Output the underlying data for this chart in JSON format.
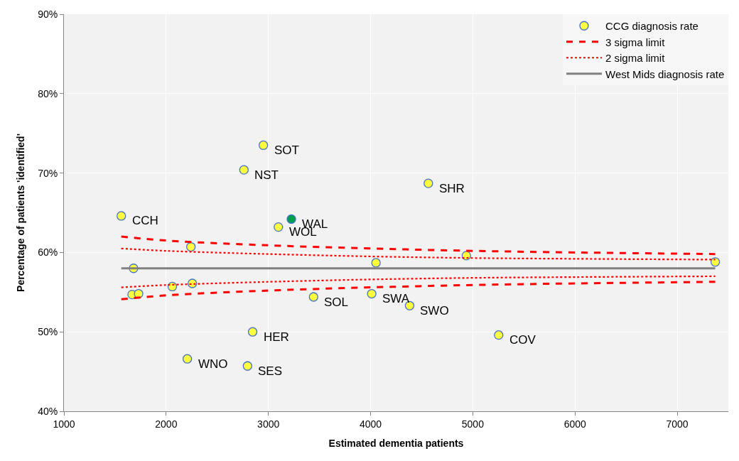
{
  "chart_data": {
    "type": "scatter",
    "xlabel": "Estimated dementia patients",
    "ylabel": "Percentage of patients 'identified'",
    "xlim": [
      1000,
      7500
    ],
    "xticks": [
      1000,
      2000,
      3000,
      4000,
      5000,
      6000,
      7000
    ],
    "ylim": [
      40,
      90
    ],
    "yticks": [
      {
        "value": 40,
        "label": "40%"
      },
      {
        "value": 50,
        "label": "50%"
      },
      {
        "value": 60,
        "label": "60%"
      },
      {
        "value": 70,
        "label": "70%"
      },
      {
        "value": 80,
        "label": "80%"
      },
      {
        "value": 90,
        "label": "90%"
      }
    ],
    "grid": true,
    "legend": "top right",
    "series": [
      {
        "name": "CCG diagnosis rate",
        "marker": "circle",
        "color": "#ffff40",
        "x": [
          1561,
          1681,
          1667,
          1730,
          2060,
          2242,
          2256,
          2207,
          2796,
          2846,
          2761,
          2951,
          3225,
          3098,
          3442,
          4011,
          4382,
          4565,
          4053,
          4937,
          5253,
          7372
        ],
        "values": [
          64.6,
          58.0,
          54.7,
          54.8,
          55.7,
          60.7,
          56.1,
          46.6,
          45.7,
          50.0,
          70.4,
          73.5,
          64.2,
          63.2,
          54.4,
          54.8,
          53.3,
          68.7,
          58.7,
          59.6,
          49.6,
          58.8
        ],
        "colors": [
          "#ffff40",
          "#ffff40",
          "#ffff40",
          "#ffff40",
          "#ffff40",
          "#ffff40",
          "#ffff40",
          "#ffff40",
          "#ffff40",
          "#ffff40",
          "#ffff40",
          "#ffff40",
          "#00a050",
          "#ffff40",
          "#ffff40",
          "#ffff40",
          "#ffff40",
          "#ffff40",
          "#ffff40",
          "#ffff40",
          "#ffff40",
          "#ffff40"
        ]
      },
      {
        "name": "3 sigma limit",
        "type": "line",
        "line_style": "dashed",
        "color": "#ff0000",
        "x": [
          1561,
          2000,
          3000,
          4000,
          5000,
          6000,
          7372
        ],
        "values": [
          62.0,
          61.5,
          60.9,
          60.5,
          60.2,
          60.0,
          59.8
        ]
      },
      {
        "type": "line",
        "line_style": "dashed",
        "color": "#ff0000",
        "x": [
          1561,
          2000,
          3000,
          4000,
          5000,
          6000,
          7372
        ],
        "values": [
          54.1,
          54.6,
          55.2,
          55.6,
          55.9,
          56.1,
          56.3
        ]
      },
      {
        "name": "2 sigma limit",
        "type": "line",
        "line_style": "dotted",
        "color": "#ff0000",
        "x": [
          1561,
          2000,
          3000,
          4000,
          5000,
          6000,
          7372
        ],
        "values": [
          60.5,
          60.2,
          59.8,
          59.5,
          59.3,
          59.2,
          59.1
        ]
      },
      {
        "type": "line",
        "line_style": "dotted",
        "color": "#ff0000",
        "x": [
          1561,
          2000,
          3000,
          4000,
          5000,
          6000,
          7372
        ],
        "values": [
          55.6,
          55.9,
          56.3,
          56.6,
          56.8,
          56.9,
          57.0
        ]
      },
      {
        "name": "West Mids diagnosis rate",
        "type": "line",
        "line_style": "solid",
        "color": "#808080",
        "x": [
          1561,
          7372
        ],
        "values": [
          58.0,
          58.0
        ]
      }
    ],
    "annotations": [
      {
        "text": "CCH",
        "x": 1561,
        "y": 64.6
      },
      {
        "text": "WNO",
        "x": 2207,
        "y": 46.6
      },
      {
        "text": "SES",
        "x": 2796,
        "y": 45.7
      },
      {
        "text": "HER",
        "x": 2846,
        "y": 50.0
      },
      {
        "text": "NST",
        "x": 2761,
        "y": 70.4
      },
      {
        "text": "SOT",
        "x": 2951,
        "y": 73.5
      },
      {
        "text": "WAL",
        "x": 3225,
        "y": 64.2
      },
      {
        "text": "WOL",
        "x": 3098,
        "y": 63.2
      },
      {
        "text": "SOL",
        "x": 3442,
        "y": 54.4
      },
      {
        "text": "SWA",
        "x": 4011,
        "y": 54.8
      },
      {
        "text": "SWO",
        "x": 4382,
        "y": 53.3
      },
      {
        "text": "SHR",
        "x": 4565,
        "y": 68.7
      },
      {
        "text": "COV",
        "x": 5253,
        "y": 49.6
      }
    ]
  }
}
